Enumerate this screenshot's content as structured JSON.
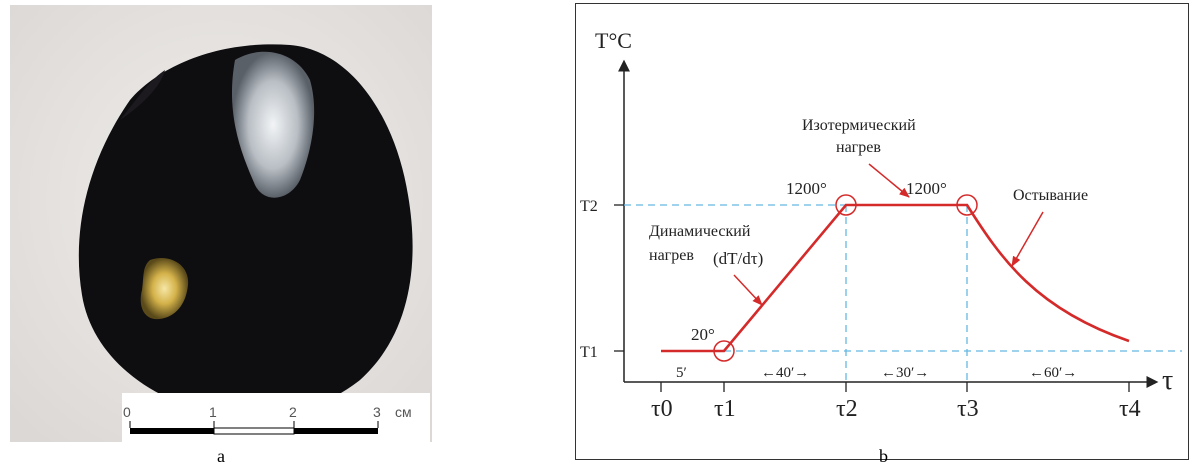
{
  "panel_a": {
    "scale_labels": [
      "0",
      "1",
      "2",
      "3"
    ],
    "scale_unit": "см",
    "caption": "a"
  },
  "panel_b": {
    "caption": "b",
    "y_axis_label": "T°C",
    "x_axis_label": "τ",
    "y_ticks": [
      "T2",
      "T1"
    ],
    "x_ticks": [
      "τ0",
      "τ1",
      "τ2",
      "τ3",
      "τ4"
    ],
    "intervals": [
      "5′",
      "←40′→",
      "←30′→",
      "←60′→"
    ],
    "annotations": {
      "dynamic_line1": "Динамический",
      "dynamic_line2": "нагрев",
      "dynamic_formula": "(dT/dτ)",
      "isothermal_line1": "Изотермический",
      "isothermal_line2": "нагрев",
      "cooling": "Остывание"
    },
    "point_labels": [
      "20°",
      "1200°",
      "1200°"
    ],
    "colors": {
      "curve": "#d42a2a",
      "guide": "#66b8e0",
      "axis": "#222222"
    }
  }
}
